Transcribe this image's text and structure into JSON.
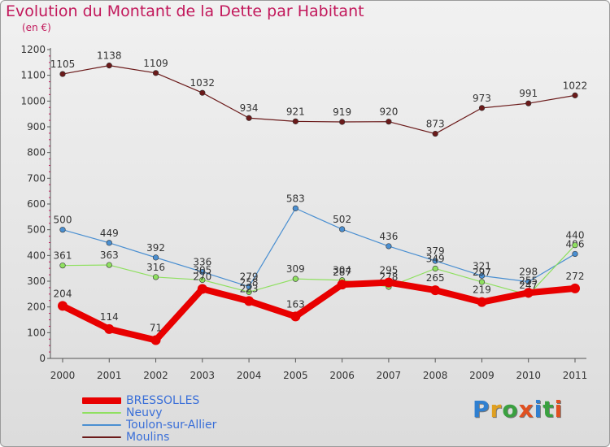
{
  "title": "Evolution du Montant de la Dette par Habitant",
  "subtitle": "(en €)",
  "logo_text": "Proxiti",
  "chart_data": {
    "type": "line",
    "title": "Evolution du Montant de la Dette par Habitant",
    "ylabel": "(en €)",
    "xlabel": "",
    "ylim": [
      0,
      1200
    ],
    "yticks": [
      0,
      100,
      200,
      300,
      400,
      500,
      600,
      700,
      800,
      900,
      1000,
      1100,
      1200
    ],
    "grid": false,
    "legend_position": "bottom-left",
    "categories": [
      "2000",
      "2001",
      "2002",
      "2003",
      "2004",
      "2005",
      "2006",
      "2007",
      "2008",
      "2009",
      "2010",
      "2011"
    ],
    "series": [
      {
        "name": "Moulins",
        "color": "#6b1a1a",
        "values": [
          1105,
          1138,
          1109,
          1032,
          934,
          921,
          919,
          920,
          873,
          973,
          991,
          1022
        ],
        "labels_visible": true
      },
      {
        "name": "Toulon-sur-Allier",
        "color": "#4a8fd1",
        "values": [
          500,
          449,
          392,
          336,
          279,
          583,
          502,
          436,
          379,
          321,
          298,
          406
        ],
        "labels_visible": true
      },
      {
        "name": "Neuvy",
        "color": "#8fe060",
        "values": [
          361,
          363,
          316,
          305,
          258,
          309,
          304,
          278,
          349,
          297,
          247,
          440
        ],
        "labels_visible": true
      },
      {
        "name": "BRESSOLLES",
        "color": "#e80000",
        "values": [
          204,
          114,
          71,
          270,
          223,
          163,
          287,
          295,
          265,
          219,
          255,
          272
        ],
        "labels_visible": true
      }
    ]
  }
}
